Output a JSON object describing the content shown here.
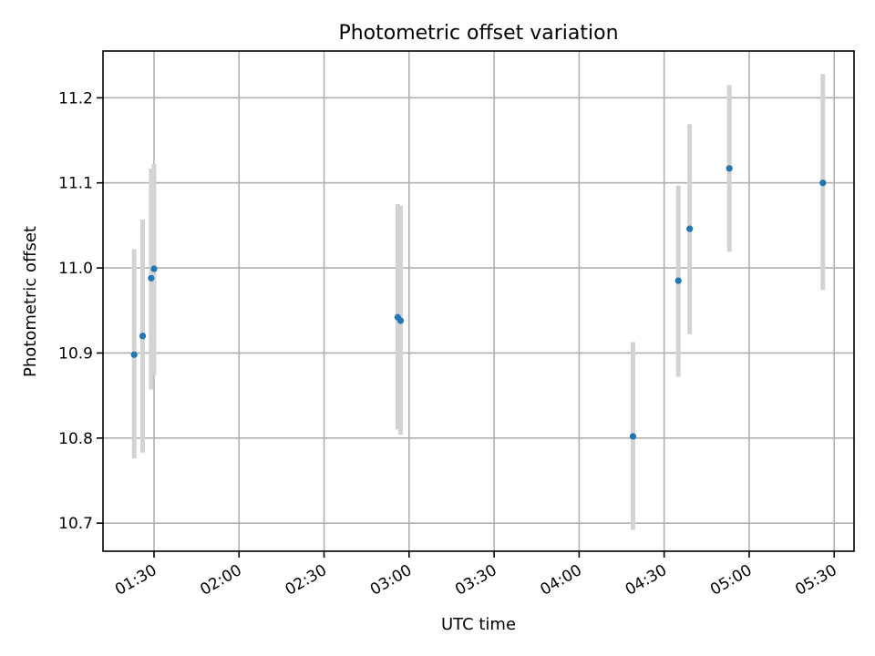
{
  "chart_data": {
    "type": "scatter",
    "title": "Photometric offset variation",
    "xlabel": "UTC time",
    "ylabel": "Photometric offset",
    "x_unit": "time of day (HH:MM)",
    "xlim": [
      "01:12",
      "05:37"
    ],
    "ylim": [
      10.667,
      11.255
    ],
    "grid": true,
    "point_color": "#1f77b4",
    "errorbar_color": "#d3d3d3",
    "x_ticks": [
      "01:30",
      "02:00",
      "02:30",
      "03:00",
      "03:30",
      "04:00",
      "04:30",
      "05:00",
      "05:30"
    ],
    "y_ticks": [
      "10.7",
      "10.8",
      "10.9",
      "11.0",
      "11.1",
      "11.2"
    ],
    "points": [
      {
        "x": "01:23",
        "y": 10.898,
        "err_low": 10.776,
        "err_high": 11.022
      },
      {
        "x": "01:26",
        "y": 10.92,
        "err_low": 10.783,
        "err_high": 11.057
      },
      {
        "x": "01:29",
        "y": 10.988,
        "err_low": 10.857,
        "err_high": 11.117
      },
      {
        "x": "01:30",
        "y": 10.999,
        "err_low": 10.874,
        "err_high": 11.122
      },
      {
        "x": "02:56",
        "y": 10.942,
        "err_low": 10.81,
        "err_high": 11.075
      },
      {
        "x": "02:57",
        "y": 10.938,
        "err_low": 10.804,
        "err_high": 11.073
      },
      {
        "x": "04:19",
        "y": 10.802,
        "err_low": 10.692,
        "err_high": 10.913
      },
      {
        "x": "04:35",
        "y": 10.985,
        "err_low": 10.872,
        "err_high": 11.097
      },
      {
        "x": "04:39",
        "y": 11.046,
        "err_low": 10.922,
        "err_high": 11.169
      },
      {
        "x": "04:53",
        "y": 11.117,
        "err_low": 11.019,
        "err_high": 11.215
      },
      {
        "x": "05:26",
        "y": 11.1,
        "err_low": 10.974,
        "err_high": 11.228
      }
    ]
  }
}
